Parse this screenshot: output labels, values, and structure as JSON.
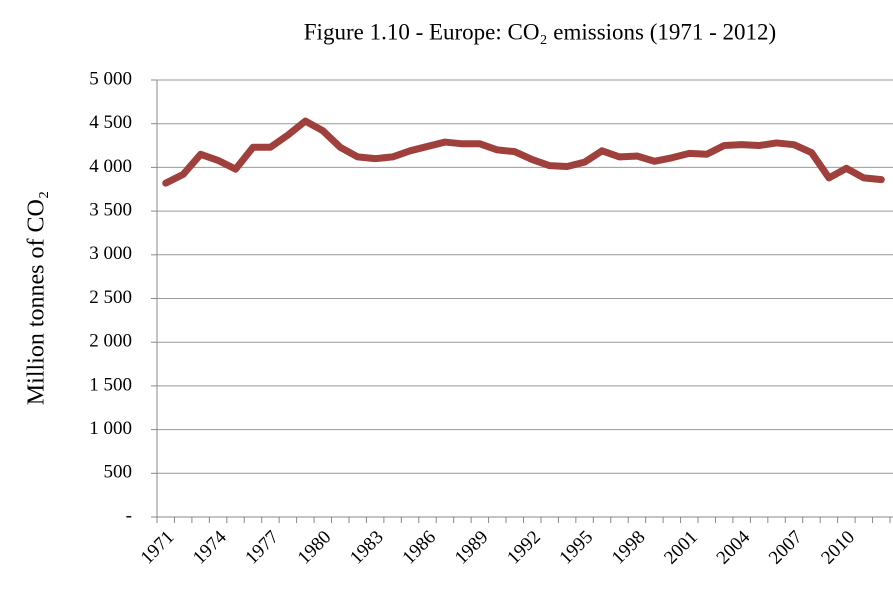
{
  "chart_data": {
    "type": "line",
    "title": "Figure 1.10 - Europe: CO₂ emissions (1971 - 2012)",
    "y_label": "Million tonnes of CO₂",
    "categories": [
      "1971",
      null,
      null,
      "1974",
      null,
      null,
      "1977",
      null,
      null,
      "1980",
      null,
      null,
      "1983",
      null,
      null,
      "1986",
      null,
      null,
      "1989",
      null,
      null,
      "1992",
      null,
      null,
      "1995",
      null,
      null,
      "1998",
      null,
      null,
      "2001",
      null,
      null,
      "2004",
      null,
      null,
      "2007",
      null,
      null,
      "2010",
      null,
      null
    ],
    "series": [
      {
        "name": "CO₂ emissions",
        "color": "#a0403d",
        "values": [
          3820,
          3920,
          4150,
          4080,
          3980,
          4230,
          4230,
          4370,
          4530,
          4420,
          4230,
          4120,
          4100,
          4120,
          4190,
          4240,
          4290,
          4270,
          4270,
          4200,
          4180,
          4090,
          4020,
          4010,
          4060,
          4190,
          4120,
          4130,
          4070,
          4110,
          4160,
          4150,
          4250,
          4260,
          4250,
          4280,
          4260,
          4170,
          3880,
          3990,
          3880,
          3860
        ]
      }
    ],
    "ylim": [
      0,
      5000
    ],
    "yticks": [
      {
        "value": 0,
        "label": "-"
      },
      500,
      {
        "value": 1000,
        "label": "1 000"
      },
      {
        "value": 1500,
        "label": "1 500"
      },
      {
        "value": 2000,
        "label": "2 000"
      },
      {
        "value": 2500,
        "label": "2 500"
      },
      {
        "value": 3000,
        "label": "3 000"
      },
      {
        "value": 3500,
        "label": "3 500"
      },
      {
        "value": 4000,
        "label": "4 000"
      },
      {
        "value": 4500,
        "label": "4 500"
      },
      {
        "value": 5000,
        "label": "5 000"
      }
    ],
    "grid": true
  }
}
